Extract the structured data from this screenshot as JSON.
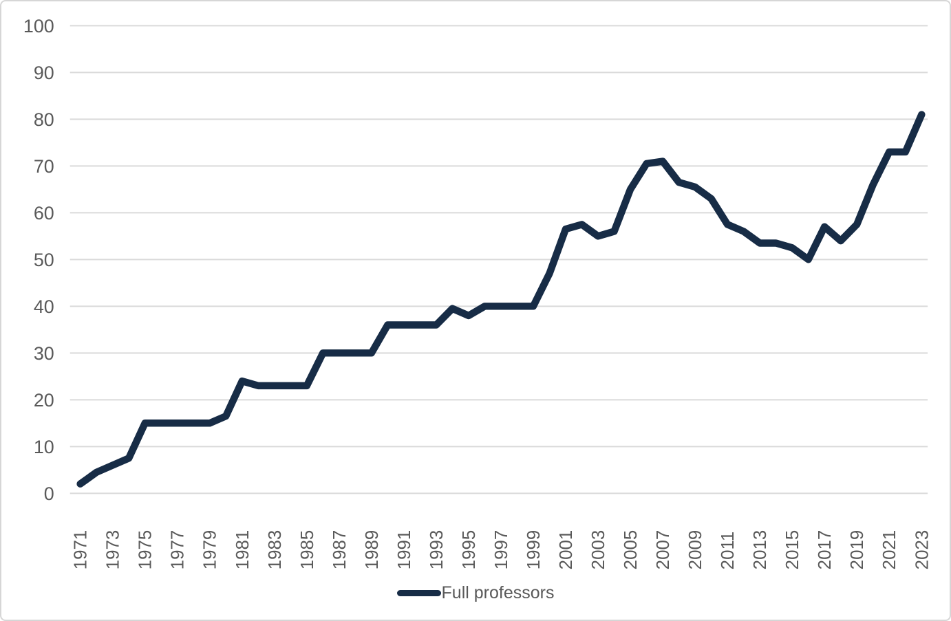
{
  "chart_data": {
    "type": "line",
    "title": "",
    "xlabel": "",
    "ylabel": "",
    "x": [
      1971,
      1972,
      1973,
      1974,
      1975,
      1976,
      1977,
      1978,
      1979,
      1980,
      1981,
      1982,
      1983,
      1984,
      1985,
      1986,
      1987,
      1988,
      1989,
      1990,
      1991,
      1992,
      1993,
      1994,
      1995,
      1996,
      1997,
      1998,
      1999,
      2000,
      2001,
      2002,
      2003,
      2004,
      2005,
      2006,
      2007,
      2008,
      2009,
      2010,
      2011,
      2012,
      2013,
      2014,
      2015,
      2016,
      2017,
      2018,
      2019,
      2020,
      2021,
      2022,
      2023
    ],
    "series": [
      {
        "name": "Full professors",
        "color": "#172c46",
        "values": [
          2,
          4.5,
          6,
          7.5,
          15,
          15,
          15,
          15,
          15,
          16.5,
          24,
          23,
          23,
          23,
          23,
          30,
          30,
          30,
          30,
          36,
          36,
          36,
          36,
          39.5,
          38,
          40,
          40,
          40,
          40,
          47,
          56.5,
          57.5,
          55,
          56,
          65,
          70.5,
          71,
          66.5,
          65.5,
          63,
          57.5,
          56,
          53.5,
          53.5,
          52.5,
          50,
          57,
          54,
          57.5,
          66,
          73,
          73,
          81
        ]
      }
    ],
    "ylim": [
      0,
      100
    ],
    "ytick_step": 10,
    "ytick_labels": [
      "0",
      "10",
      "20",
      "30",
      "40",
      "50",
      "60",
      "70",
      "80",
      "90",
      "100"
    ],
    "xtick_labels": [
      "1971",
      "1973",
      "1975",
      "1977",
      "1979",
      "1981",
      "1983",
      "1985",
      "1987",
      "1989",
      "1991",
      "1993",
      "1995",
      "1997",
      "1999",
      "2001",
      "2003",
      "2005",
      "2007",
      "2009",
      "2011",
      "2013",
      "2015",
      "2017",
      "2019",
      "2021",
      "2023"
    ],
    "grid": "horizontal",
    "legend_position": "bottom-center"
  },
  "legend": {
    "label": "Full professors"
  },
  "colors": {
    "line": "#172c46",
    "gridline": "#dadada",
    "axis_text": "#595959",
    "border": "#d6d6d6",
    "background": "#ffffff"
  }
}
